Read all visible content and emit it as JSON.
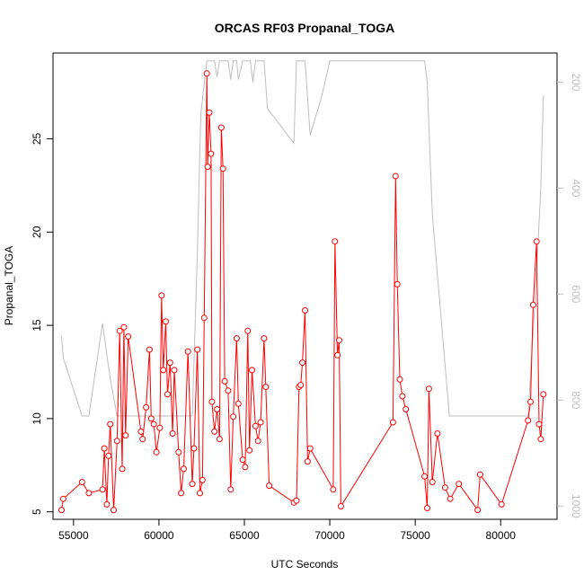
{
  "chart_data": {
    "type": "line",
    "title": "ORCAS RF03 Propanal_TOGA",
    "xlabel": "UTC Seconds",
    "ylabel": "Propanal_TOGA",
    "xlim": [
      53800,
      83300
    ],
    "ylim": [
      4.6,
      29.6
    ],
    "x_ticks": [
      55000,
      60000,
      65000,
      70000,
      75000,
      80000
    ],
    "x_tick_labels": [
      "55000",
      "60000",
      "65000",
      "70000",
      "75000",
      "80000"
    ],
    "y_ticks": [
      5,
      10,
      15,
      20,
      25
    ],
    "y_tick_labels": [
      "5",
      "10",
      "15",
      "20",
      "25"
    ],
    "grid": false,
    "series": [
      {
        "color": "#ff0000",
        "marker": "open-circle",
        "x": [
          54300,
          54400,
          55500,
          55900,
          56700,
          56800,
          56950,
          57050,
          57150,
          57350,
          57550,
          57700,
          57850,
          57950,
          58050,
          58200,
          58950,
          59050,
          59250,
          59450,
          59550,
          59700,
          59850,
          60050,
          60150,
          60250,
          60400,
          60500,
          60650,
          60800,
          60900,
          61150,
          61300,
          61450,
          61700,
          61950,
          62050,
          62250,
          62400,
          62550,
          62650,
          62800,
          62850,
          62950,
          63050,
          63100,
          63250,
          63400,
          63550,
          63650,
          63750,
          63850,
          64050,
          64200,
          64350,
          64550,
          64650,
          64900,
          65050,
          65200,
          65300,
          65450,
          65650,
          65800,
          65950,
          66150,
          66250,
          66450,
          67900,
          68050,
          68200,
          68300,
          68400,
          68550,
          68700,
          68850,
          70200,
          70300,
          70450,
          70550,
          70650,
          73700,
          73850,
          73950,
          74100,
          74250,
          74450,
          75550,
          75700,
          75800,
          76000,
          76300,
          76750,
          77050,
          77550,
          78650,
          78800,
          80050,
          81600,
          81750,
          81900,
          82100,
          82250,
          82350,
          82500
        ],
        "y": [
          5.1,
          5.7,
          6.6,
          6.0,
          6.2,
          8.4,
          5.4,
          8.0,
          9.7,
          5.1,
          8.8,
          14.7,
          7.3,
          14.9,
          9.1,
          14.4,
          9.3,
          8.9,
          10.6,
          13.7,
          10.0,
          9.7,
          8.2,
          9.5,
          16.6,
          12.6,
          15.2,
          11.3,
          13.0,
          9.2,
          12.6,
          8.2,
          6.0,
          7.3,
          13.6,
          6.5,
          8.4,
          13.7,
          6.0,
          6.7,
          15.4,
          28.5,
          23.5,
          26.4,
          24.2,
          10.9,
          9.3,
          10.5,
          8.9,
          25.6,
          23.4,
          12.0,
          11.5,
          6.2,
          10.1,
          14.3,
          10.8,
          7.8,
          7.4,
          14.7,
          8.3,
          12.6,
          9.6,
          8.8,
          9.8,
          14.3,
          11.7,
          6.4,
          5.5,
          5.6,
          11.7,
          11.8,
          13.0,
          15.8,
          7.7,
          8.4,
          6.2,
          19.5,
          13.4,
          14.2,
          5.3,
          9.8,
          23.0,
          17.2,
          12.1,
          11.2,
          10.5,
          6.9,
          5.2,
          11.6,
          6.6,
          9.2,
          6.3,
          5.7,
          6.5,
          5.1,
          7.0,
          5.4,
          9.9,
          10.9,
          16.1,
          19.5,
          9.7,
          8.9,
          11.3
        ]
      },
      {
        "color": "#bebebe",
        "axis": "right",
        "right_ylim": [
          1025,
          145
        ],
        "right_ticks": [
          200,
          400,
          600,
          800,
          1000
        ],
        "right_tick_labels": [
          "200",
          "400",
          "600",
          "800",
          "1000"
        ],
        "x": [
          54300,
          54400,
          55500,
          55900,
          56700,
          57150,
          57550,
          58050,
          58950,
          60050,
          61150,
          61950,
          62250,
          62450,
          62800,
          62950,
          63100,
          63250,
          63400,
          63550,
          63700,
          63850,
          64050,
          64200,
          64350,
          64550,
          64650,
          64900,
          65050,
          65200,
          65350,
          65500,
          65650,
          65800,
          65950,
          66150,
          66350,
          67900,
          68050,
          68300,
          68550,
          68850,
          69500,
          70000,
          70200,
          70650,
          73700,
          73850,
          74050,
          74450,
          75550,
          75700,
          76000,
          77000,
          78000,
          80050,
          81600,
          81900,
          82100,
          82350,
          82500
        ],
        "y": [
          680,
          720,
          830,
          830,
          655,
          760,
          830,
          830,
          830,
          830,
          830,
          830,
          520,
          260,
          160,
          160,
          160,
          160,
          190,
          160,
          160,
          160,
          160,
          195,
          160,
          160,
          195,
          160,
          160,
          160,
          160,
          200,
          160,
          160,
          160,
          160,
          250,
          315,
          160,
          160,
          160,
          300,
          230,
          160,
          160,
          160,
          160,
          160,
          160,
          160,
          160,
          200,
          450,
          830,
          830,
          830,
          830,
          670,
          560,
          400,
          225
        ]
      }
    ]
  }
}
